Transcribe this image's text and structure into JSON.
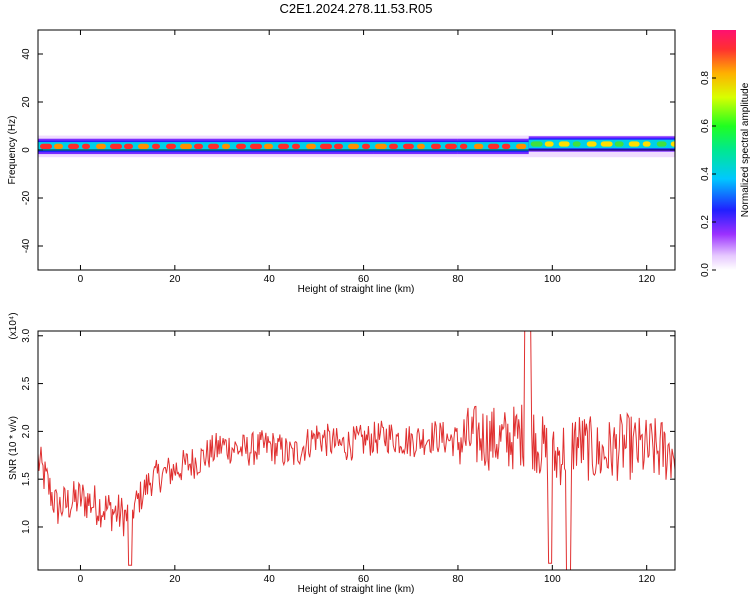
{
  "page_title": "C2E1.2024.278.11.53.R05",
  "colorbar": {
    "label": "Normalized spectral amplitude",
    "ticks": [
      "0.0",
      "0.2",
      "0.4",
      "0.6",
      "0.8"
    ],
    "tick_values": [
      0.0,
      0.2,
      0.4,
      0.6,
      0.8
    ],
    "range": [
      0,
      1
    ]
  },
  "chart_data": [
    {
      "type": "heatmap",
      "title": "C2E1.2024.278.11.53.R05",
      "xlabel": "Height of straight line (km)",
      "ylabel": "Frequency (Hz)",
      "xlim": [
        -9,
        126
      ],
      "ylim": [
        -50,
        50
      ],
      "x_ticks": [
        0,
        20,
        40,
        60,
        80,
        100,
        120
      ],
      "y_ticks": [
        -40,
        -20,
        0,
        20,
        40
      ],
      "colormap": "rainbow (violet→blue→cyan→green→yellow→red)",
      "description_bands": [
        {
          "x_start": -9,
          "x_end": 62,
          "center_freq": 1.5,
          "peak_level": 0.95
        },
        {
          "x_start": 62,
          "x_end": 80,
          "center_freq": 1.5,
          "peak_level": 0.95
        },
        {
          "x_start": 80,
          "x_end": 95,
          "center_freq": 1.5,
          "peak_level": 0.85
        },
        {
          "x_start": 95,
          "x_end": 126,
          "center_freq": 2.5,
          "peak_level": 0.6
        }
      ]
    },
    {
      "type": "line",
      "xlabel": "Height of straight line (km)",
      "ylabel": "SNR (10 * v/v)",
      "y_exponent_label": "(x10⁴)",
      "xlim": [
        -9,
        126
      ],
      "ylim": [
        0.55,
        3.05
      ],
      "x_ticks": [
        0,
        20,
        40,
        60,
        80,
        100,
        120
      ],
      "y_ticks": [
        1.0,
        1.5,
        2.0,
        2.5,
        3.0
      ],
      "y_tick_labels": [
        "1.0",
        "1.5",
        "2.0",
        "2.5",
        "3.0"
      ],
      "series": [
        {
          "color": "#e03030",
          "x": [
            -9,
            -5,
            0,
            5,
            10,
            15,
            20,
            25,
            30,
            35,
            40,
            45,
            50,
            55,
            60,
            65,
            70,
            75,
            80,
            85,
            90,
            95,
            100,
            105,
            110,
            115,
            120,
            125
          ],
          "y": [
            1.7,
            1.2,
            1.3,
            1.2,
            1.1,
            1.5,
            1.6,
            1.7,
            1.85,
            1.8,
            1.85,
            1.75,
            1.95,
            1.85,
            1.9,
            1.95,
            1.9,
            1.95,
            1.9,
            1.95,
            1.9,
            2.0,
            1.7,
            1.9,
            1.75,
            1.85,
            1.8,
            1.8
          ]
        }
      ]
    }
  ]
}
